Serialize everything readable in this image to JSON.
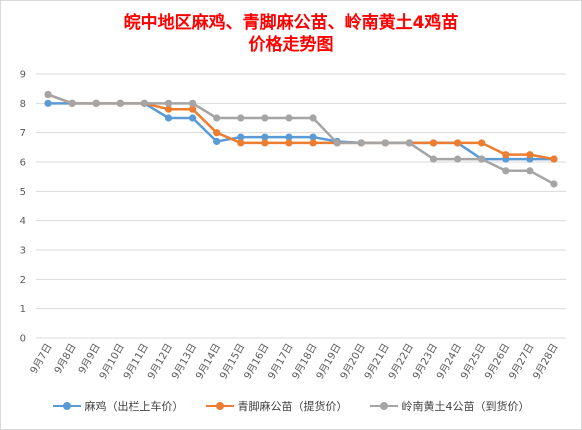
{
  "chart_data": {
    "type": "line",
    "title_line1": "皖中地区麻鸡、青脚麻公苗、岭南黄土4鸡苗",
    "title_line2": "价格走势图",
    "xlabel": "",
    "ylabel": "",
    "ylim": [
      0,
      9
    ],
    "ystep": 1,
    "grid": true,
    "legend_position": "bottom",
    "categories": [
      "9月7日",
      "9月8日",
      "9月9日",
      "9月10日",
      "9月11日",
      "9月12日",
      "9月13日",
      "9月14日",
      "9月15日",
      "9月16日",
      "9月17日",
      "9月18日",
      "9月19日",
      "9月20日",
      "9月21日",
      "9月22日",
      "9月23日",
      "9月24日",
      "9月25日",
      "9月26日",
      "9月27日",
      "9月28日"
    ],
    "series": [
      {
        "name": "麻鸡（出栏上车价）",
        "color": "#5b9bd5",
        "values": [
          8,
          8,
          8,
          8,
          8,
          7.5,
          7.5,
          6.7,
          6.85,
          6.85,
          6.85,
          6.85,
          6.7,
          6.65,
          6.65,
          6.65,
          6.65,
          6.65,
          6.1,
          6.1,
          6.1,
          6.1
        ]
      },
      {
        "name": "青脚麻公苗（提货价）",
        "color": "#ed7d31",
        "values": [
          8.3,
          8,
          8,
          8,
          8,
          7.8,
          7.8,
          7,
          6.65,
          6.65,
          6.65,
          6.65,
          6.65,
          6.65,
          6.65,
          6.65,
          6.65,
          6.65,
          6.65,
          6.25,
          6.25,
          6.1
        ]
      },
      {
        "name": "岭南黄土4公苗（到货价）",
        "color": "#a5a5a5",
        "values": [
          8.3,
          8,
          8,
          8,
          8,
          8,
          8,
          7.5,
          7.5,
          7.5,
          7.5,
          7.5,
          6.65,
          6.65,
          6.65,
          6.65,
          6.1,
          6.1,
          6.1,
          5.7,
          5.7,
          5.25
        ]
      }
    ]
  }
}
